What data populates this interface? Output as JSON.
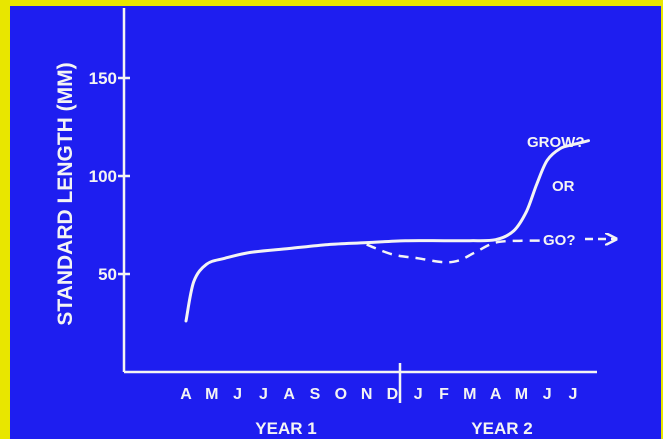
{
  "chart_data": {
    "type": "line",
    "ylabel": "STANDARD LENGTH (MM)",
    "yticks": [
      50,
      100,
      150
    ],
    "ylim": [
      0,
      170
    ],
    "months": [
      "A",
      "M",
      "J",
      "J",
      "A",
      "S",
      "O",
      "N",
      "D",
      "J",
      "F",
      "M",
      "A",
      "M",
      "J",
      "J"
    ],
    "year_labels": [
      "YEAR 1",
      "YEAR 2"
    ],
    "series": [
      {
        "style": "solid",
        "x": [
          0,
          0.3,
          0.8,
          1.5,
          2.5,
          4.0,
          5.5,
          7.0,
          8.5,
          10.0,
          11.0,
          12.0,
          12.7,
          13.2,
          13.6,
          14.0,
          14.5,
          15.0,
          15.6
        ],
        "y": [
          26,
          46,
          55,
          58,
          61,
          63,
          65,
          66,
          67,
          67,
          67,
          67.5,
          72,
          82,
          96,
          108,
          114,
          116,
          118
        ]
      },
      {
        "style": "dashed",
        "x": [
          7.0,
          8.0,
          9.0,
          10.0,
          10.6,
          11.2,
          12.0,
          13.0,
          14.0
        ],
        "y": [
          65,
          60,
          58,
          56,
          57,
          61,
          66,
          67,
          67
        ]
      }
    ],
    "annotations": [
      "GROW?",
      "OR",
      "GO?"
    ]
  }
}
